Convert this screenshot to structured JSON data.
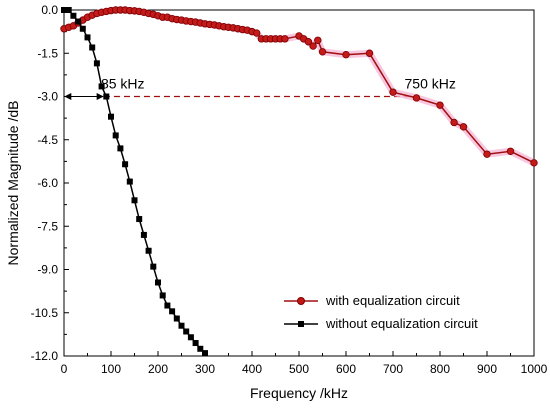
{
  "chart_data": {
    "type": "line",
    "xlabel": "Frequency /kHz",
    "ylabel": "Normalized Magnitude /dB",
    "xlim": [
      0,
      1000
    ],
    "ylim": [
      -12,
      0
    ],
    "xticks": [
      0,
      100,
      200,
      300,
      400,
      500,
      600,
      700,
      800,
      900,
      1000
    ],
    "yticks": [
      0,
      -1.5,
      -3.0,
      -4.5,
      -6.0,
      -7.5,
      -9.0,
      -10.5,
      -12.0
    ],
    "ytick_labels": [
      "0.0",
      "-1.5",
      "-3.0",
      "-4.5",
      "-6.0",
      "-7.5",
      "-9.0",
      "-10.5",
      "-12.0"
    ],
    "xtick_labels": [
      "0",
      "100",
      "200",
      "300",
      "400",
      "500",
      "600",
      "700",
      "800",
      "900",
      "1000"
    ],
    "grid": false,
    "legend_position": "bottom-right",
    "series": [
      {
        "name": "with equalization circuit",
        "color": "#a01010",
        "marker": "circle",
        "points": [
          [
            0,
            -0.65
          ],
          [
            10,
            -0.6
          ],
          [
            20,
            -0.55
          ],
          [
            30,
            -0.45
          ],
          [
            40,
            -0.35
          ],
          [
            50,
            -0.25
          ],
          [
            60,
            -0.18
          ],
          [
            70,
            -0.12
          ],
          [
            80,
            -0.08
          ],
          [
            90,
            -0.05
          ],
          [
            100,
            -0.02
          ],
          [
            110,
            0
          ],
          [
            120,
            0
          ],
          [
            130,
            0
          ],
          [
            140,
            -0.02
          ],
          [
            150,
            -0.03
          ],
          [
            160,
            -0.05
          ],
          [
            170,
            -0.08
          ],
          [
            180,
            -0.12
          ],
          [
            190,
            -0.15
          ],
          [
            200,
            -0.2
          ],
          [
            210,
            -0.25
          ],
          [
            220,
            -0.25
          ],
          [
            230,
            -0.3
          ],
          [
            240,
            -0.33
          ],
          [
            250,
            -0.35
          ],
          [
            260,
            -0.38
          ],
          [
            270,
            -0.4
          ],
          [
            280,
            -0.42
          ],
          [
            290,
            -0.45
          ],
          [
            300,
            -0.48
          ],
          [
            310,
            -0.5
          ],
          [
            320,
            -0.52
          ],
          [
            330,
            -0.55
          ],
          [
            340,
            -0.58
          ],
          [
            350,
            -0.6
          ],
          [
            360,
            -0.62
          ],
          [
            370,
            -0.65
          ],
          [
            380,
            -0.68
          ],
          [
            390,
            -0.7
          ],
          [
            400,
            -0.75
          ],
          [
            410,
            -0.8
          ],
          [
            420,
            -1.0
          ],
          [
            430,
            -1.0
          ],
          [
            440,
            -1.0
          ],
          [
            450,
            -1.0
          ],
          [
            460,
            -1.0
          ],
          [
            470,
            -1.0
          ],
          [
            500,
            -0.9
          ],
          [
            510,
            -1.0
          ],
          [
            520,
            -1.1
          ],
          [
            530,
            -1.25
          ],
          [
            540,
            -1.05
          ],
          [
            550,
            -1.45
          ],
          [
            600,
            -1.55
          ],
          [
            650,
            -1.5
          ],
          [
            700,
            -2.85
          ],
          [
            750,
            -3.05
          ],
          [
            800,
            -3.3
          ],
          [
            830,
            -3.9
          ],
          [
            850,
            -4.05
          ],
          [
            900,
            -5.0
          ],
          [
            950,
            -4.9
          ],
          [
            1000,
            -5.3
          ]
        ]
      },
      {
        "name": "without equalization circuit",
        "color": "#000000",
        "marker": "square",
        "points": [
          [
            0,
            0
          ],
          [
            10,
            0
          ],
          [
            20,
            -0.2
          ],
          [
            30,
            -0.4
          ],
          [
            40,
            -0.65
          ],
          [
            50,
            -0.95
          ],
          [
            60,
            -1.3
          ],
          [
            70,
            -1.85
          ],
          [
            80,
            -2.65
          ],
          [
            90,
            -3.0
          ],
          [
            100,
            -3.7
          ],
          [
            110,
            -4.35
          ],
          [
            120,
            -4.8
          ],
          [
            130,
            -5.35
          ],
          [
            140,
            -5.95
          ],
          [
            150,
            -6.6
          ],
          [
            160,
            -7.25
          ],
          [
            170,
            -7.8
          ],
          [
            180,
            -8.35
          ],
          [
            190,
            -8.9
          ],
          [
            200,
            -9.45
          ],
          [
            210,
            -9.9
          ],
          [
            220,
            -10.25
          ],
          [
            230,
            -10.45
          ],
          [
            240,
            -10.7
          ],
          [
            250,
            -10.95
          ],
          [
            260,
            -11.15
          ],
          [
            270,
            -11.35
          ],
          [
            280,
            -11.55
          ],
          [
            290,
            -11.75
          ],
          [
            300,
            -11.9
          ]
        ]
      }
    ],
    "annotations": [
      {
        "text": "85 kHz",
        "x": 85,
        "y": -3.0
      },
      {
        "text": "750 kHz",
        "x": 750,
        "y": -3.0
      }
    ]
  }
}
